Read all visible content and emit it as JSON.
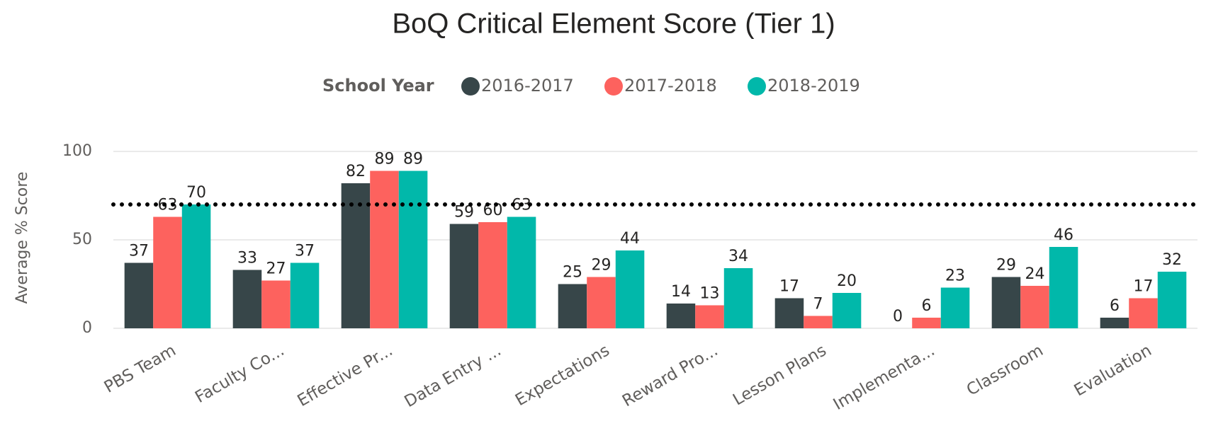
{
  "chart_data": {
    "type": "bar",
    "title": "BoQ Critical Element Score (Tier 1)",
    "legend_title": "School Year",
    "y_label": "Average % Score",
    "categories": [
      "PBS Team",
      "Faculty Co...",
      "Effective Pr...",
      "Data Entry ...",
      "Expectations",
      "Reward Pro...",
      "Lesson Plans",
      "Implementa...",
      "Classroom",
      "Evaluation"
    ],
    "series": [
      {
        "name": "2016-2017",
        "color": "#374649",
        "values": [
          37,
          33,
          82,
          59,
          25,
          14,
          17,
          0,
          29,
          6
        ]
      },
      {
        "name": "2017-2018",
        "color": "#fd625e",
        "values": [
          63,
          27,
          89,
          60,
          29,
          13,
          7,
          6,
          24,
          17
        ]
      },
      {
        "name": "2018-2019",
        "color": "#01b8aa",
        "values": [
          70,
          37,
          89,
          63,
          44,
          34,
          20,
          23,
          46,
          32
        ]
      }
    ],
    "reference_line": {
      "value": 70
    },
    "ylim": [
      0,
      100
    ],
    "yticks": [
      0,
      50,
      100
    ],
    "grid": true,
    "legend_position": "top"
  }
}
